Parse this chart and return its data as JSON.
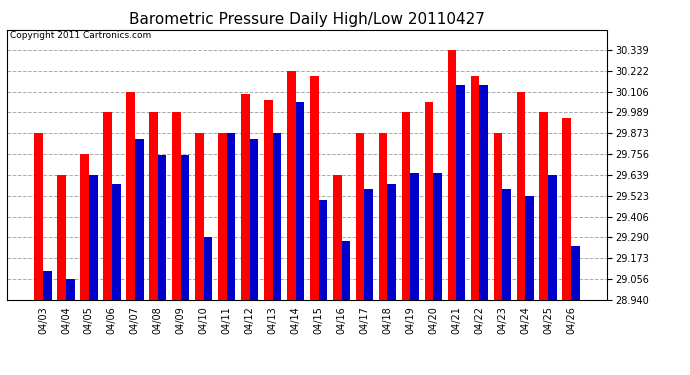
{
  "title": "Barometric Pressure Daily High/Low 20110427",
  "copyright": "Copyright 2011 Cartronics.com",
  "dates": [
    "04/03",
    "04/04",
    "04/05",
    "04/06",
    "04/07",
    "04/08",
    "04/09",
    "04/10",
    "04/11",
    "04/12",
    "04/13",
    "04/14",
    "04/15",
    "04/16",
    "04/17",
    "04/18",
    "04/19",
    "04/20",
    "04/21",
    "04/22",
    "04/23",
    "04/24",
    "04/25",
    "04/26"
  ],
  "highs": [
    29.873,
    29.639,
    29.756,
    29.989,
    30.106,
    29.989,
    29.989,
    29.873,
    29.873,
    30.09,
    30.056,
    30.222,
    30.19,
    29.639,
    29.873,
    29.873,
    29.989,
    30.05,
    30.339,
    30.19,
    29.873,
    30.106,
    29.989,
    29.96
  ],
  "lows": [
    29.1,
    29.056,
    29.64,
    29.59,
    29.84,
    29.75,
    29.75,
    29.29,
    29.873,
    29.84,
    29.873,
    30.05,
    29.5,
    29.27,
    29.56,
    29.59,
    29.65,
    29.65,
    30.14,
    30.14,
    29.56,
    29.523,
    29.64,
    29.24
  ],
  "high_color": "#ff0000",
  "low_color": "#0000cc",
  "background_color": "#ffffff",
  "ylim_min": 28.94,
  "ylim_max": 30.45,
  "yticks": [
    28.94,
    29.056,
    29.173,
    29.29,
    29.406,
    29.523,
    29.639,
    29.756,
    29.873,
    29.989,
    30.106,
    30.222,
    30.339
  ],
  "grid_color": "#aaaaaa",
  "grid_style": "--",
  "bar_width": 0.38,
  "title_fontsize": 11,
  "tick_fontsize": 7,
  "copyright_fontsize": 6.5
}
